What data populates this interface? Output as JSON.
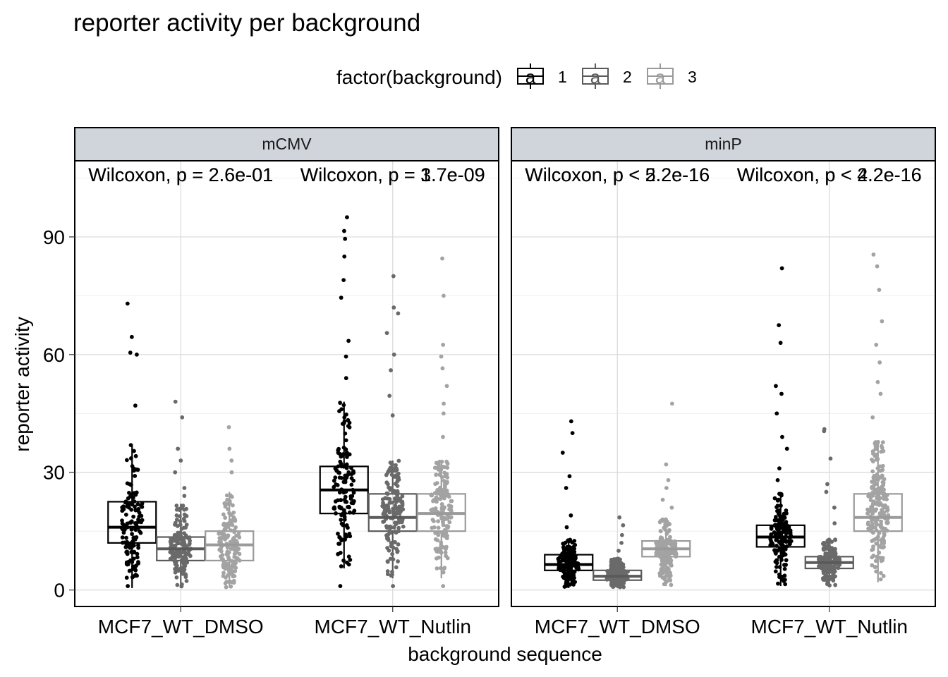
{
  "chart_data": {
    "type": "box",
    "title": "reporter activity per background",
    "xlabel": "background sequence",
    "ylabel": "reporter activity",
    "ylim": [
      -4.2,
      109.4
    ],
    "yticks": [
      0,
      30,
      60,
      90
    ],
    "grid": true,
    "legend": {
      "title": "factor(background)",
      "position": "top",
      "key_glyph": "a",
      "entries": [
        {
          "label": "1",
          "color": "#000000",
          "point_color": "#000000"
        },
        {
          "label": "2",
          "color": "#5a5a5a",
          "point_color": "#6a6a6a"
        },
        {
          "label": "3",
          "color": "#9a9a9a",
          "point_color": "#a3a3a3"
        }
      ]
    },
    "categories": [
      "MCF7_WT_DMSO",
      "MCF7_WT_Nutlin"
    ],
    "panels": [
      {
        "name": "mCMV",
        "annotations": [
          {
            "category": "MCF7_WT_DMSO",
            "texts": [
              "Wilcoxon, p = 2.6e-01",
              "Wilcoxon, p = 2.6e-01"
            ]
          },
          {
            "category": "MCF7_WT_Nutlin",
            "texts": [
              "Wilcoxon, p = 3.7e-09",
              "Wilcoxon, p = 1.7e-09"
            ]
          }
        ],
        "groups": [
          {
            "category": "MCF7_WT_DMSO",
            "background": "1",
            "q1": 12.0,
            "median": 16.0,
            "q3": 22.5,
            "whisker_low": 0.5,
            "whisker_high": 37.0,
            "outliers": [
              47.0,
              60.0,
              60.5,
              64.5,
              73.0
            ],
            "n": 140
          },
          {
            "category": "MCF7_WT_DMSO",
            "background": "2",
            "q1": 7.5,
            "median": 10.5,
            "q3": 13.5,
            "whisker_low": 0.5,
            "whisker_high": 22.0,
            "outliers": [
              24.0,
              26.0,
              30.0,
              33.0,
              36.0,
              44.0,
              48.0
            ],
            "n": 160
          },
          {
            "category": "MCF7_WT_DMSO",
            "background": "3",
            "q1": 7.5,
            "median": 11.5,
            "q3": 15.0,
            "whisker_low": 0.5,
            "whisker_high": 25.0,
            "outliers": [
              30.0,
              33.0,
              36.0,
              41.5
            ],
            "n": 160
          },
          {
            "category": "MCF7_WT_Nutlin",
            "background": "1",
            "q1": 19.5,
            "median": 25.5,
            "q3": 31.5,
            "whisker_low": 5.5,
            "whisker_high": 48.0,
            "outliers": [
              1.0,
              54.0,
              59.5,
              63.5,
              74.5,
              79.0,
              85.0,
              89.5,
              91.5,
              95.0
            ],
            "n": 140
          },
          {
            "category": "MCF7_WT_Nutlin",
            "background": "2",
            "q1": 15.0,
            "median": 18.5,
            "q3": 24.5,
            "whisker_low": 3.0,
            "whisker_high": 33.0,
            "outliers": [
              1.0,
              44.5,
              49.5,
              56.0,
              60.0,
              65.5,
              70.5,
              72.0,
              80.0
            ],
            "n": 160
          },
          {
            "category": "MCF7_WT_Nutlin",
            "background": "3",
            "q1": 15.0,
            "median": 19.5,
            "q3": 24.5,
            "whisker_low": 3.0,
            "whisker_high": 33.0,
            "outliers": [
              1.0,
              39.0,
              45.0,
              47.5,
              52.0,
              56.5,
              59.5,
              62.5,
              75.0,
              84.5
            ],
            "n": 160
          }
        ]
      },
      {
        "name": "minP",
        "annotations": [
          {
            "category": "MCF7_WT_DMSO",
            "texts": [
              "Wilcoxon, p < 2.2e-16",
              "Wilcoxon, p < 5.2e-16"
            ]
          },
          {
            "category": "MCF7_WT_Nutlin",
            "texts": [
              "Wilcoxon, p < 2.2e-16",
              "Wilcoxon, p < 4.2e-16"
            ]
          }
        ],
        "groups": [
          {
            "category": "MCF7_WT_DMSO",
            "background": "1",
            "q1": 5.0,
            "median": 6.5,
            "q3": 9.0,
            "whisker_low": 0.5,
            "whisker_high": 13.0,
            "outliers": [
              16.0,
              19.0,
              26.0,
              29.0,
              35.0,
              40.0,
              43.0
            ],
            "n": 180
          },
          {
            "category": "MCF7_WT_DMSO",
            "background": "2",
            "q1": 2.5,
            "median": 3.5,
            "q3": 5.0,
            "whisker_low": 0.5,
            "whisker_high": 8.0,
            "outliers": [
              10.0,
              12.0,
              14.0,
              16.5,
              18.5
            ],
            "n": 200
          },
          {
            "category": "MCF7_WT_DMSO",
            "background": "3",
            "q1": 8.5,
            "median": 10.5,
            "q3": 12.5,
            "whisker_low": 1.0,
            "whisker_high": 18.0,
            "outliers": [
              21.0,
              23.0,
              26.0,
              28.0,
              32.0,
              47.5
            ],
            "n": 180
          },
          {
            "category": "MCF7_WT_Nutlin",
            "background": "1",
            "q1": 11.0,
            "median": 13.5,
            "q3": 16.5,
            "whisker_low": 1.0,
            "whisker_high": 25.0,
            "outliers": [
              28.0,
              31.0,
              36.0,
              39.0,
              45.0,
              50.0,
              52.0,
              63.0,
              67.5,
              82.0
            ],
            "n": 160
          },
          {
            "category": "MCF7_WT_Nutlin",
            "background": "2",
            "q1": 5.5,
            "median": 7.0,
            "q3": 8.5,
            "whisker_low": 1.0,
            "whisker_high": 13.0,
            "outliers": [
              17.0,
              21.0,
              25.0,
              27.0,
              33.5,
              40.5,
              41.0
            ],
            "n": 200
          },
          {
            "category": "MCF7_WT_Nutlin",
            "background": "3",
            "q1": 15.0,
            "median": 18.5,
            "q3": 24.5,
            "whisker_low": 2.0,
            "whisker_high": 38.0,
            "outliers": [
              44.0,
              50.0,
              53.0,
              58.0,
              62.5,
              68.5,
              76.5,
              82.5,
              85.5
            ],
            "n": 200
          }
        ]
      }
    ]
  }
}
